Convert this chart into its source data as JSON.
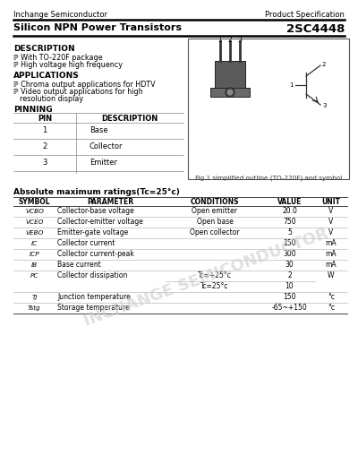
{
  "header_left": "Inchange Semiconductor",
  "header_right": "Product Specification",
  "title_left": "Silicon NPN Power Transistors",
  "title_right": "2SC4448",
  "desc_title": "DESCRIPTION",
  "desc_line1": "ℙ With TO-220F package",
  "desc_line2": "ℙ High voltage high frequency",
  "app_title": "APPLICATIONS",
  "app_line1": "ℙ Chroma output applications for HDTV",
  "app_line2": "ℙ Video output applications for high",
  "app_line3": "    resolution display",
  "pin_title": "PINNING",
  "pin_col1": "PIN",
  "pin_col2": "DESCRIPTION",
  "pin_rows": [
    [
      "1",
      "Base"
    ],
    [
      "2",
      "Collector"
    ],
    [
      "3",
      "Emitter"
    ]
  ],
  "fig_caption": "Fig.1 simplified outline (TO-220F) and symbol",
  "abs_title": "Absolute maximum ratings(Tc=25°c)",
  "abs_headers": [
    "SYMBOL",
    "PARAMETER",
    "CONDITIONS",
    "VALUE",
    "UNIT"
  ],
  "abs_rows": [
    [
      "VCBO",
      "Collector-base voltage",
      "Open emitter",
      "20.0",
      "V"
    ],
    [
      "VCEO",
      "Collector-emitter voltage",
      "Open base",
      "750",
      "V"
    ],
    [
      "VEBO",
      "Emitter-gate voltage",
      "Open collector",
      "5",
      "V"
    ],
    [
      "IC",
      "Collector current",
      "",
      "150",
      "mA"
    ],
    [
      "ICP",
      "Collector current-peak",
      "",
      "300",
      "mA"
    ],
    [
      "IB",
      "Base current",
      "",
      "30",
      "mA"
    ],
    [
      "PC",
      "Collector dissipation",
      "Tc=+25°c",
      "2",
      "W"
    ],
    [
      "",
      "",
      "Tc=25°c",
      "10",
      ""
    ],
    [
      "TJ",
      "Junction temperature",
      "",
      "150",
      "°c"
    ],
    [
      "Tstg",
      "Storage temperature",
      "",
      "-65~+150",
      "°c"
    ]
  ],
  "watermark": "INCHANGE SEMICONDUCTOR",
  "bg_color": "#ffffff",
  "text_color": "#000000",
  "gray_color": "#888888",
  "light_gray": "#cccccc"
}
